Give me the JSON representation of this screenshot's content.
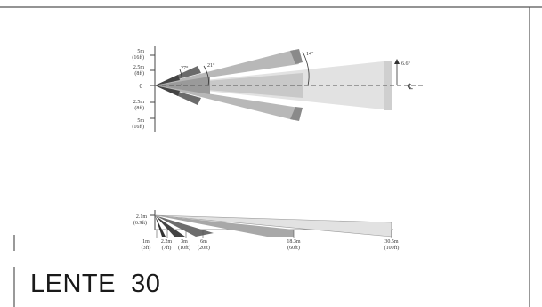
{
  "caption": "LENTE  30",
  "top_view": {
    "axis_labels": {
      "m5_top": "5m",
      "ft16_top": "(16ft)",
      "m25_top": "2.5m",
      "ft8_top": "(8ft)",
      "zero": "0",
      "m25_bot": "2.5m",
      "ft8_bot": "(8ft)",
      "m5_bot": "5m",
      "ft16_bot": "(16ft)"
    },
    "angles": {
      "a27": "27°",
      "a21": "21°",
      "a14": "14°",
      "a66": "6.6°"
    },
    "centerline_symbol": "℄"
  },
  "side_view": {
    "height_label": "2.1m",
    "height_label_ft": "(6.9ft)",
    "distances": [
      {
        "m": "1m",
        "ft": "(3ft)"
      },
      {
        "m": "2.2m",
        "ft": "(7ft)"
      },
      {
        "m": "3m",
        "ft": "(10ft)"
      },
      {
        "m": "6m",
        "ft": "(20ft)"
      },
      {
        "m": "18.3m",
        "ft": "(60ft)"
      },
      {
        "m": "30.5m",
        "ft": "(100ft)"
      }
    ]
  }
}
